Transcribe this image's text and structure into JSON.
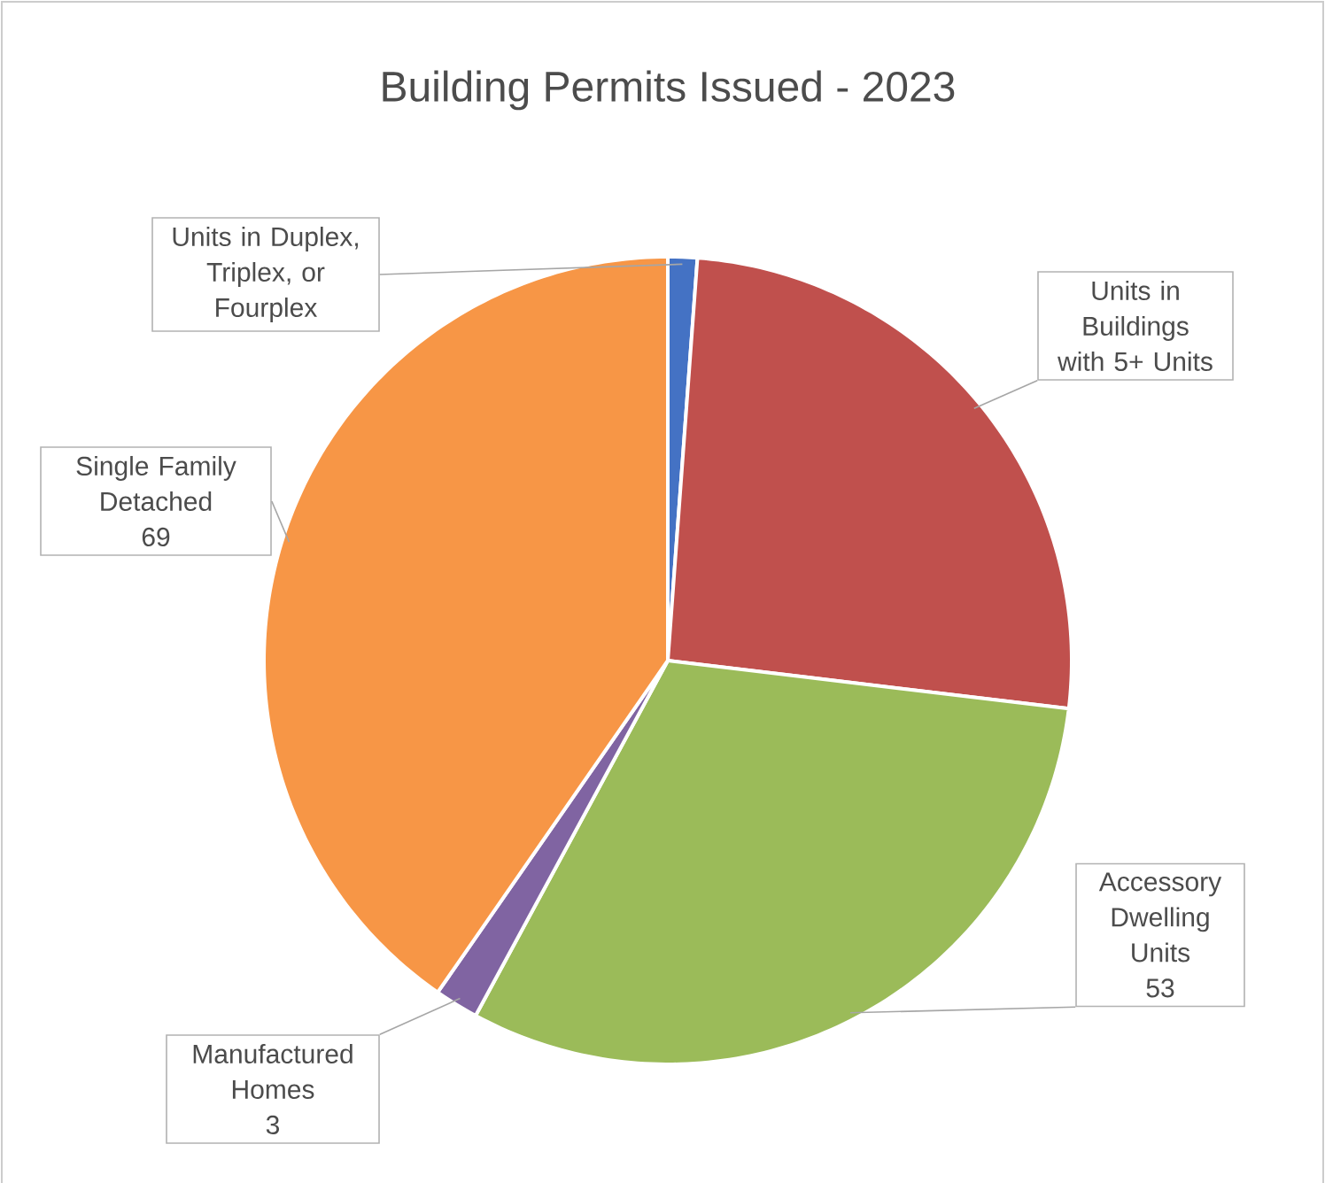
{
  "chart_data": {
    "type": "pie",
    "title": "Building Permits Issued - 2023",
    "categories": [
      "Units in Duplex, Triplex, or Fourplex",
      "Units in Buildings with 5+ Units",
      "Accessory Dwelling Units",
      "Manufactured Homes",
      "Single Family Detached"
    ],
    "values": [
      2,
      44,
      53,
      3,
      69
    ],
    "colors": [
      "#4472c4",
      "#c0504d",
      "#9bbb59",
      "#8064a2",
      "#f79646"
    ],
    "value_labels": [
      null,
      null,
      "53",
      "3",
      "69"
    ]
  }
}
